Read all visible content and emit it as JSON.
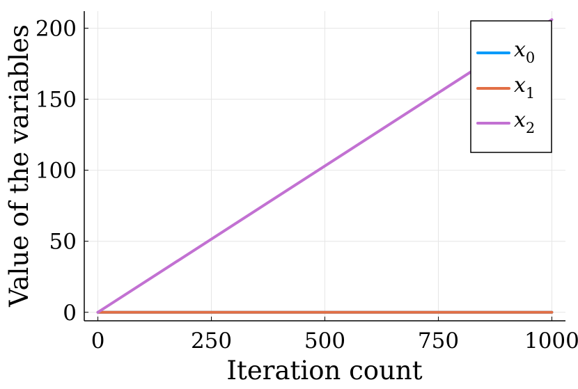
{
  "chart_data": {
    "type": "line",
    "xlabel": "Iteration count",
    "ylabel": "Value of the variables",
    "xlim": [
      -30,
      1030
    ],
    "ylim": [
      -6,
      212
    ],
    "xticks": [
      0,
      250,
      500,
      750,
      1000
    ],
    "yticks": [
      0,
      50,
      100,
      150,
      200
    ],
    "xtick_labels": [
      "0",
      "250",
      "500",
      "750",
      "1000"
    ],
    "ytick_labels": [
      "0",
      "50",
      "100",
      "150",
      "200"
    ],
    "grid": true,
    "legend_position": "top-right",
    "series": [
      {
        "name": "x",
        "subscript": "0",
        "color": "#009AFA",
        "x": [
          0,
          1000
        ],
        "y": [
          0,
          0
        ]
      },
      {
        "name": "x",
        "subscript": "1",
        "color": "#E26F46",
        "x": [
          0,
          1000
        ],
        "y": [
          0,
          0
        ]
      },
      {
        "name": "x",
        "subscript": "2",
        "color": "#C271D2",
        "x": [
          0,
          1000
        ],
        "y": [
          0,
          206
        ]
      }
    ]
  }
}
